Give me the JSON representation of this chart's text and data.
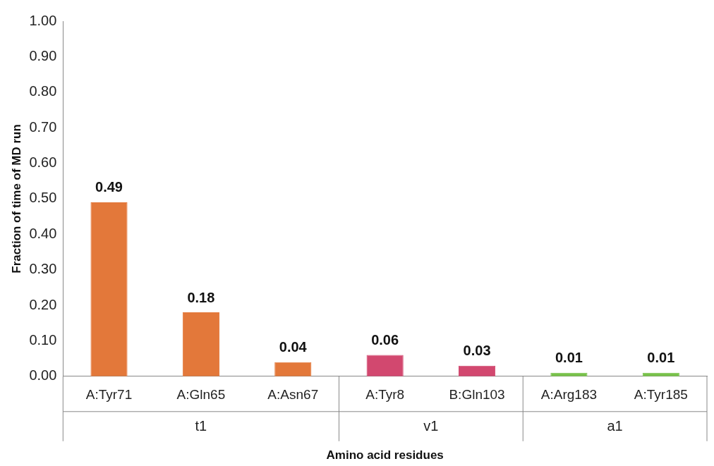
{
  "chart_data": {
    "type": "bar",
    "ylabel": "Fraction of time of MD run",
    "xlabel": "Amino acid residues",
    "categories": [
      "A:Tyr71",
      "A:Gln65",
      "A:Asn67",
      "A:Tyr8",
      "B:Gln103",
      "A:Arg183",
      "A:Tyr185"
    ],
    "series": [
      {
        "color": "#e3783a",
        "values": [
          0.49,
          0.18,
          0.04,
          null,
          null,
          null,
          null
        ]
      },
      {
        "color": "#d2486f",
        "values": [
          null,
          null,
          null,
          0.06,
          0.03,
          null,
          null
        ]
      },
      {
        "color": "#78c24a",
        "values": [
          null,
          null,
          null,
          null,
          null,
          0.01,
          0.01
        ]
      }
    ],
    "ylim": [
      0,
      1
    ],
    "yticks": [
      {
        "value": 0,
        "label": "0.00"
      },
      {
        "value": 0.1,
        "label": "0.10"
      },
      {
        "value": 0.2,
        "label": "0.20"
      },
      {
        "value": 0.3,
        "label": "0.30"
      },
      {
        "value": 0.4,
        "label": "0.40"
      },
      {
        "value": 0.5,
        "label": "0.50"
      },
      {
        "value": 0.6,
        "label": "0.60"
      },
      {
        "value": 0.7,
        "label": "0.70"
      },
      {
        "value": 0.8,
        "label": "0.80"
      },
      {
        "value": 0.9,
        "label": "0.90"
      },
      {
        "value": 1,
        "label": "1.00"
      }
    ],
    "annotations": [
      "t1",
      "v1",
      "a1"
    ],
    "grid": false,
    "legend": false,
    "data_labels": true
  }
}
